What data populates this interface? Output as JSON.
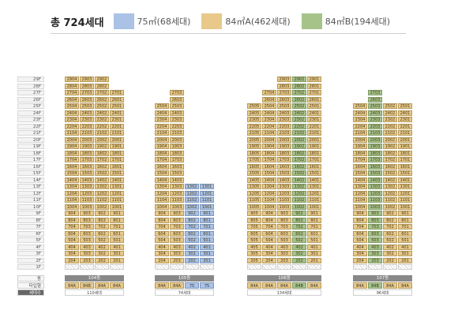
{
  "legend": {
    "total": "총 724세대",
    "items": [
      {
        "label": "75㎡(68세대)",
        "color": "#a9c2e6"
      },
      {
        "label": "84㎡A(462세대)",
        "color": "#e8c98a"
      },
      {
        "label": "84㎡B(194세대)",
        "color": "#a6c38a"
      }
    ]
  },
  "floor_labels": [
    "29F",
    "28F",
    "27F",
    "26F",
    "25F",
    "24F",
    "23F",
    "22F",
    "21F",
    "20F",
    "19F",
    "18F",
    "17F",
    "16F",
    "15F",
    "14F",
    "13F",
    "12F",
    "11F",
    "10F",
    "9F",
    "8F",
    "7F",
    "6F",
    "5F",
    "4F",
    "3F",
    "2F",
    "1F"
  ],
  "bottom_labels": {
    "dong": "동",
    "type": "타입형",
    "count": "세대수"
  },
  "buildings": [
    {
      "name": "104동",
      "count": "110세대",
      "columns": [
        {
          "line": "04",
          "type": "84A",
          "unit_type": "A",
          "top": 29
        },
        {
          "line": "03",
          "type": "84B",
          "unit_type": "A",
          "top": 29
        },
        {
          "line": "02",
          "type": "84A",
          "unit_type": "A",
          "top": 29
        },
        {
          "line": "01",
          "type": "84A",
          "unit_type": "A",
          "top": 27
        }
      ]
    },
    {
      "name": "105동",
      "count": "74세대",
      "columns": [
        {
          "line": "04",
          "type": "84A",
          "unit_type": "A",
          "top": 25
        },
        {
          "line": "03",
          "type": "84A",
          "unit_type": "A",
          "top": 27
        },
        {
          "line": "02",
          "type": "75",
          "unit_type": "S",
          "top": 13
        },
        {
          "line": "01",
          "type": "75",
          "unit_type": "S",
          "top": 13
        }
      ]
    },
    {
      "name": "106동",
      "count": "134세대",
      "columns": [
        {
          "line": "05",
          "type": "84A",
          "unit_type": "A",
          "top": 25
        },
        {
          "line": "04",
          "type": "84A",
          "unit_type": "A",
          "top": 27
        },
        {
          "line": "03",
          "type": "84A",
          "unit_type": "A",
          "top": 29
        },
        {
          "line": "02",
          "type": "84B",
          "unit_type": "B",
          "top": 29
        },
        {
          "line": "01",
          "type": "84A",
          "unit_type": "A",
          "top": 29
        }
      ]
    },
    {
      "name": "107동",
      "count": "96세대",
      "columns": [
        {
          "line": "04",
          "type": "84A",
          "unit_type": "A",
          "top": 25
        },
        {
          "line": "03",
          "type": "84B",
          "unit_type": "B",
          "top": 27
        },
        {
          "line": "02",
          "type": "84A",
          "unit_type": "A",
          "top": 25
        },
        {
          "line": "01",
          "type": "84A",
          "unit_type": "A",
          "top": 25
        }
      ]
    }
  ]
}
